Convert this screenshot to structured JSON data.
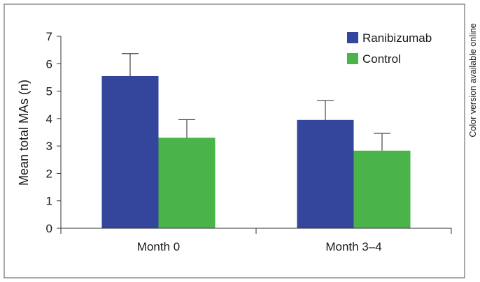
{
  "chart_data": {
    "type": "bar",
    "categories": [
      "Month 0",
      "Month 3–4"
    ],
    "series": [
      {
        "name": "Ranibizumab",
        "values": [
          5.55,
          3.95
        ],
        "errors": [
          0.82,
          0.71
        ],
        "color": "#33469c"
      },
      {
        "name": "Control",
        "values": [
          3.3,
          2.83
        ],
        "errors": [
          0.66,
          0.63
        ],
        "color": "#4ab34a"
      }
    ],
    "title": "",
    "xlabel": "",
    "ylabel": "Mean total MAs (n)",
    "ylim": [
      0,
      7
    ],
    "yticks": [
      0,
      1,
      2,
      3,
      4,
      5,
      6,
      7
    ],
    "legend_position": "top-right",
    "grid": false,
    "side_note": "Color version available online"
  }
}
